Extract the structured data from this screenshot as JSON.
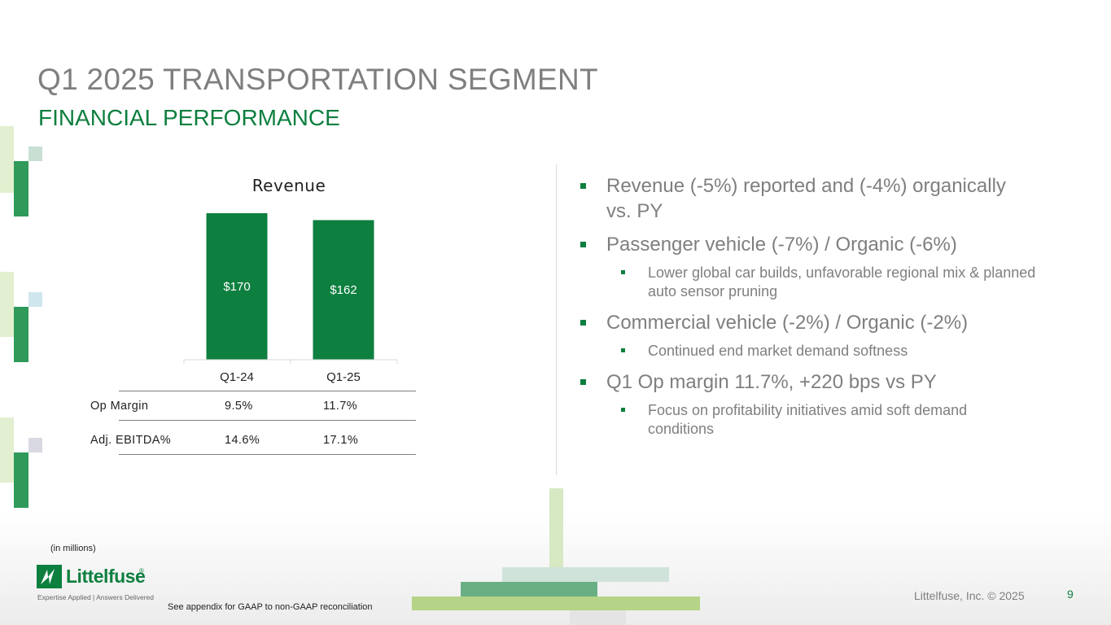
{
  "slide": {
    "title": "Q1 2025 TRANSPORTATION SEGMENT",
    "subtitle": "FINANCIAL PERFORMANCE",
    "page_number": "9",
    "copyright": "Littelfuse, Inc. © 2025",
    "units_note": "(in millions)",
    "appendix_note": "See appendix for GAAP to non-GAAP reconciliation"
  },
  "logo": {
    "wordmark": "Littelfuse",
    "registered": "®",
    "tagline": "Expertise Applied | Answers Delivered"
  },
  "colors": {
    "brand_green": "#0d7f3f",
    "title_gray": "#7f7f7f"
  },
  "chart_data": {
    "type": "bar",
    "title": "Revenue",
    "categories": [
      "Q1-24",
      "Q1-25"
    ],
    "values": [
      170,
      162
    ],
    "value_labels": [
      "$170",
      "$162"
    ],
    "xlabel": "",
    "ylabel": "",
    "ylim": [
      0,
      170
    ],
    "color": "#0d7f3f"
  },
  "metrics_table": {
    "rows": [
      {
        "label": "Op Margin",
        "q1_24": "9.5%",
        "q1_25": "11.7%"
      },
      {
        "label": "Adj. EBITDA%",
        "q1_24": "14.6%",
        "q1_25": "17.1%"
      }
    ]
  },
  "bullets": [
    {
      "text": "Revenue (-5%) reported and (-4%) organically vs. PY",
      "subs": []
    },
    {
      "text": "Passenger vehicle (-7%) / Organic (-6%)",
      "subs": [
        "Lower global car builds, unfavorable regional mix & planned auto sensor pruning"
      ]
    },
    {
      "text": "Commercial vehicle (-2%) / Organic (-2%)",
      "subs": [
        "Continued end market demand softness"
      ]
    },
    {
      "text": "Q1 Op margin 11.7%, +220 bps vs PY",
      "subs": [
        "Focus on profitability initiatives amid soft demand conditions"
      ]
    }
  ]
}
